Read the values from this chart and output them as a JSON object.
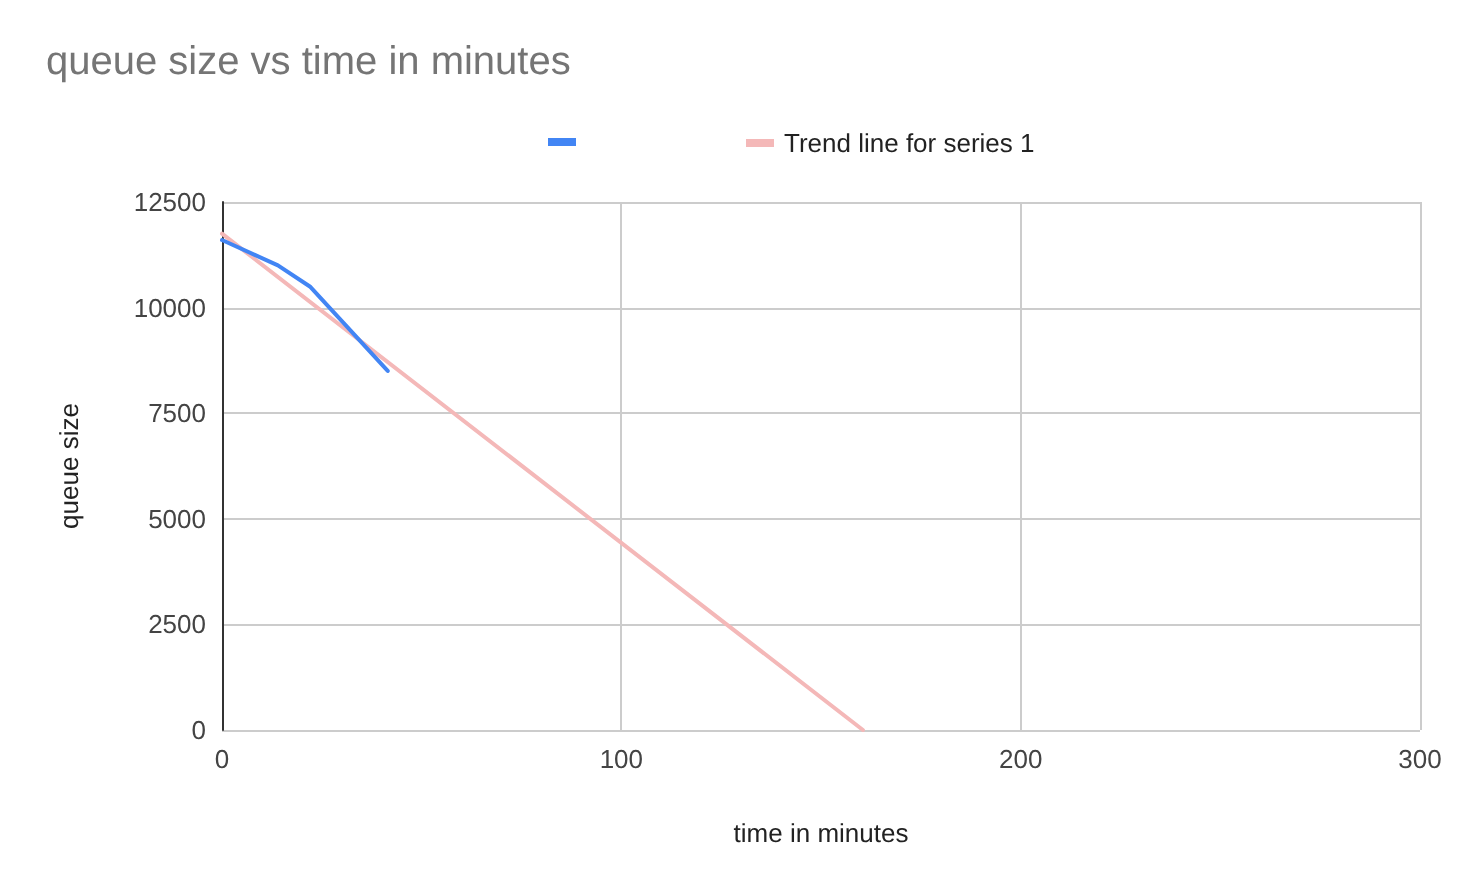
{
  "chart_data": {
    "type": "line",
    "title": "queue size vs time in minutes",
    "xlabel": "time in minutes",
    "ylabel": "queue size",
    "series": [
      {
        "color": "#4285f4",
        "x": [
          0,
          14,
          22,
          41.5
        ],
        "values": [
          11600,
          11000,
          10500,
          8500
        ]
      },
      {
        "name": "Trend line for series 1",
        "color": "#f4b8b8",
        "x": [
          0,
          160.5
        ],
        "values": [
          11750,
          0
        ]
      }
    ],
    "xlim": [
      0,
      300
    ],
    "xticks": [
      0,
      100,
      200,
      300
    ],
    "ylim": [
      0,
      12500
    ],
    "yticks": [
      0,
      2500,
      5000,
      7500,
      10000,
      12500
    ],
    "grid": true,
    "legend": "top",
    "marker": "none",
    "line_style": "solid"
  }
}
